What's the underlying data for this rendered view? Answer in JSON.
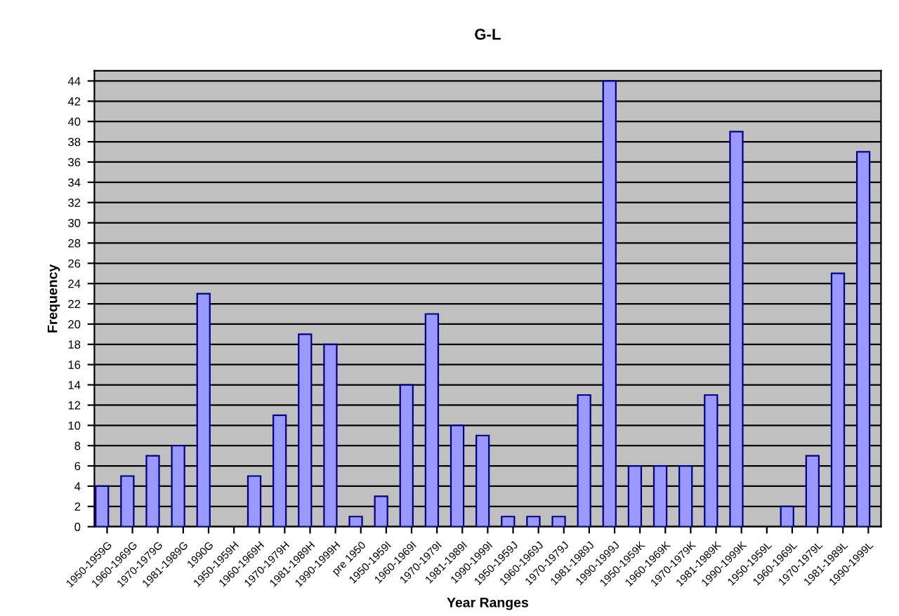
{
  "chart_data": {
    "type": "bar",
    "title": "G-L",
    "xlabel": "Year Ranges",
    "ylabel": "Frequency",
    "categories": [
      "1950-1959G",
      "1960-1969G",
      "1970-1979G",
      "1981-1989G",
      "1990G",
      "1950-1959H",
      "1960-1969H",
      "1970-1979H",
      "1981-1989H",
      "1990-1999H",
      "pre 1950",
      "1950-1959I",
      "1960-1969I",
      "1970-1979I",
      "1981-1989I",
      "1990-1999I",
      "1950-1959J",
      "1960-1969J",
      "1970-1979J",
      "1981-1989J",
      "1990-1999J",
      "1950-1959K",
      "1960-1969K",
      "1970-1979K",
      "1981-1989K",
      "1990-1999K",
      "1950-1959L",
      "1960-1969L",
      "1970-1979L",
      "1981-1989L",
      "1990-1999L"
    ],
    "values": [
      4,
      5,
      7,
      8,
      23,
      0,
      5,
      11,
      19,
      18,
      1,
      3,
      14,
      21,
      10,
      9,
      1,
      1,
      1,
      13,
      44,
      6,
      6,
      6,
      13,
      39,
      0,
      2,
      7,
      25,
      37
    ],
    "color": "#9999ff",
    "ylim": [
      0,
      45
    ],
    "yticks": [
      0,
      2,
      4,
      6,
      8,
      10,
      12,
      14,
      16,
      18,
      20,
      22,
      24,
      26,
      28,
      30,
      32,
      34,
      36,
      38,
      40,
      42,
      44
    ],
    "grid": "y",
    "legend": false
  }
}
